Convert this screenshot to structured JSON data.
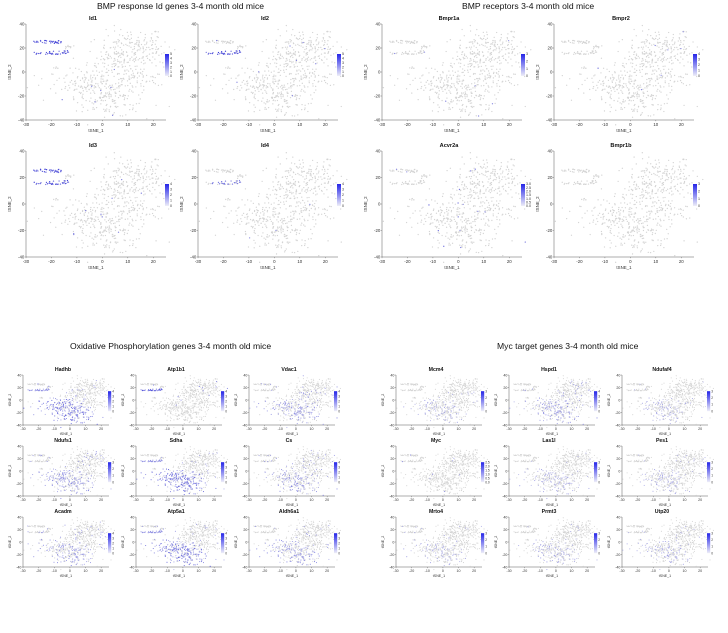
{
  "sections": [
    {
      "title": "BMP response Id genes 3-4 month old mice"
    },
    {
      "title": "BMP receptors 3-4 month old mice"
    },
    {
      "title": "Oxidative Phosphorylation genes 3-4 month old mice"
    },
    {
      "title": "Myc target genes 3-4 month old mice"
    }
  ],
  "axes": {
    "xlabel": "tSNE_1",
    "ylabel": "tSNE_2"
  },
  "colors": {
    "background_cells": "#d4d4d4",
    "expressing_cells": "#3b3bd6",
    "scale_high": "#2525e8",
    "scale_low": "#eeeef8"
  },
  "chart_data": [
    {
      "type": "scatter",
      "section": 0,
      "title": "Id1",
      "xlim": [
        -30,
        25
      ],
      "ylim": [
        -40,
        40
      ],
      "xticks": [
        "-30",
        "-20",
        "-10",
        "0",
        "10",
        "20"
      ],
      "yticks": [
        "40",
        "20",
        "0",
        "-20",
        "-40"
      ],
      "scale_max": 5,
      "colorbar": [
        "5",
        "4",
        "3",
        "2",
        "1",
        "0"
      ],
      "pattern": "islands"
    },
    {
      "type": "scatter",
      "section": 0,
      "title": "Id2",
      "xlim": [
        -30,
        25
      ],
      "ylim": [
        -40,
        40
      ],
      "xticks": [
        "-30",
        "-20",
        "-10",
        "0",
        "10",
        "20"
      ],
      "yticks": [
        "40",
        "20",
        "0",
        "-20",
        "-40"
      ],
      "scale_max": 5,
      "colorbar": [
        "5",
        "4",
        "3",
        "2",
        "1",
        "0"
      ],
      "pattern": "lower_island"
    },
    {
      "type": "scatter",
      "section": 0,
      "title": "Id3",
      "xlim": [
        -30,
        25
      ],
      "ylim": [
        -40,
        40
      ],
      "xticks": [
        "-30",
        "-20",
        "-10",
        "0",
        "10",
        "20"
      ],
      "yticks": [
        "40",
        "20",
        "0",
        "-20",
        "-40"
      ],
      "scale_max": 4,
      "colorbar": [
        "4",
        "3",
        "2",
        "1",
        "0"
      ],
      "pattern": "islands"
    },
    {
      "type": "scatter",
      "section": 0,
      "title": "Id4",
      "xlim": [
        -30,
        25
      ],
      "ylim": [
        -40,
        40
      ],
      "xticks": [
        "-30",
        "-20",
        "-10",
        "0",
        "10",
        "20"
      ],
      "yticks": [
        "40",
        "20",
        "0",
        "-20",
        "-40"
      ],
      "scale_max": 4,
      "colorbar": [
        "4",
        "3",
        "2",
        "1",
        "0"
      ],
      "pattern": "lower_island_sparse"
    },
    {
      "type": "scatter",
      "section": 1,
      "title": "Bmpr1a",
      "xlim": [
        -30,
        25
      ],
      "ylim": [
        -40,
        40
      ],
      "xticks": [
        "-30",
        "-20",
        "-10",
        "0",
        "10",
        "20"
      ],
      "yticks": [
        "40",
        "20",
        "0",
        "-20",
        "-40"
      ],
      "scale_max": 3,
      "colorbar": [
        "3",
        "2",
        "1",
        "0"
      ],
      "pattern": "sparse"
    },
    {
      "type": "scatter",
      "section": 1,
      "title": "Bmpr2",
      "xlim": [
        -30,
        25
      ],
      "ylim": [
        -40,
        40
      ],
      "xticks": [
        "-30",
        "-20",
        "-10",
        "0",
        "10",
        "20"
      ],
      "yticks": [
        "40",
        "20",
        "0",
        "-20",
        "-40"
      ],
      "scale_max": 4,
      "colorbar": [
        "4",
        "3",
        "2",
        "1",
        "0"
      ],
      "pattern": "sparse"
    },
    {
      "type": "scatter",
      "section": 1,
      "title": "Acvr2a",
      "xlim": [
        -30,
        25
      ],
      "ylim": [
        -40,
        40
      ],
      "xticks": [
        "-30",
        "-20",
        "-10",
        "0",
        "10",
        "20"
      ],
      "yticks": [
        "40",
        "20",
        "0",
        "-20",
        "-40"
      ],
      "scale_max": 3,
      "colorbar": [
        "3.0",
        "2.5",
        "2.0",
        "1.5",
        "1.0",
        "0.5",
        "0.0"
      ],
      "pattern": "sparse"
    },
    {
      "type": "scatter",
      "section": 1,
      "title": "Bmpr1b",
      "xlim": [
        -30,
        25
      ],
      "ylim": [
        -40,
        40
      ],
      "xticks": [
        "-30",
        "-20",
        "-10",
        "0",
        "10",
        "20"
      ],
      "yticks": [
        "40",
        "20",
        "0",
        "-20",
        "-40"
      ],
      "scale_max": 3,
      "colorbar": [
        "3",
        "2",
        "1",
        "0"
      ],
      "pattern": "none"
    },
    {
      "type": "scatter",
      "section": 2,
      "title": "Hadhb",
      "xlim": [
        -30,
        25
      ],
      "ylim": [
        -40,
        40
      ],
      "xticks": [
        "-30",
        "-20",
        "-10",
        "0",
        "10",
        "20"
      ],
      "yticks": [
        "40",
        "20",
        "0",
        "-20",
        "-40"
      ],
      "scale_max": 4,
      "colorbar": [
        "4",
        "3",
        "2",
        "1",
        "0"
      ],
      "pattern": "lower_dense"
    },
    {
      "type": "scatter",
      "section": 2,
      "title": "Atp1b1",
      "xlim": [
        -30,
        25
      ],
      "ylim": [
        -40,
        40
      ],
      "xticks": [
        "-30",
        "-20",
        "-10",
        "0",
        "10",
        "20"
      ],
      "yticks": [
        "40",
        "20",
        "0",
        "-20",
        "-40"
      ],
      "scale_max": 4,
      "colorbar": [
        "4",
        "3",
        "2",
        "1",
        "0"
      ],
      "pattern": "lower_island"
    },
    {
      "type": "scatter",
      "section": 2,
      "title": "Vdac1",
      "xlim": [
        -30,
        25
      ],
      "ylim": [
        -40,
        40
      ],
      "xticks": [
        "-30",
        "-20",
        "-10",
        "0",
        "10",
        "20"
      ],
      "yticks": [
        "40",
        "20",
        "0",
        "-20",
        "-40"
      ],
      "scale_max": 4,
      "colorbar": [
        "4",
        "3",
        "2",
        "1",
        "0"
      ],
      "pattern": "lower_medium"
    },
    {
      "type": "scatter",
      "section": 2,
      "title": "Ndufs1",
      "xlim": [
        -30,
        25
      ],
      "ylim": [
        -40,
        40
      ],
      "xticks": [
        "-30",
        "-20",
        "-10",
        "0",
        "10",
        "20"
      ],
      "yticks": [
        "40",
        "20",
        "0",
        "-20",
        "-40"
      ],
      "scale_max": 3,
      "colorbar": [
        "3",
        "2",
        "1",
        "0"
      ],
      "pattern": "lower_medium"
    },
    {
      "type": "scatter",
      "section": 2,
      "title": "Sdha",
      "xlim": [
        -30,
        25
      ],
      "ylim": [
        -40,
        40
      ],
      "xticks": [
        "-30",
        "-20",
        "-10",
        "0",
        "10",
        "20"
      ],
      "yticks": [
        "40",
        "20",
        "0",
        "-20",
        "-40"
      ],
      "scale_max": 4,
      "colorbar": [
        "4",
        "3",
        "2",
        "1",
        "0"
      ],
      "pattern": "lower_dense"
    },
    {
      "type": "scatter",
      "section": 2,
      "title": "Cs",
      "xlim": [
        -30,
        25
      ],
      "ylim": [
        -40,
        40
      ],
      "xticks": [
        "-30",
        "-20",
        "-10",
        "0",
        "10",
        "20"
      ],
      "yticks": [
        "40",
        "20",
        "0",
        "-20",
        "-40"
      ],
      "scale_max": 4,
      "colorbar": [
        "4",
        "3",
        "2",
        "1",
        "0"
      ],
      "pattern": "lower_medium"
    },
    {
      "type": "scatter",
      "section": 2,
      "title": "Acadm",
      "xlim": [
        -30,
        25
      ],
      "ylim": [
        -40,
        40
      ],
      "xticks": [
        "-30",
        "-20",
        "-10",
        "0",
        "10",
        "20"
      ],
      "yticks": [
        "40",
        "20",
        "0",
        "-20",
        "-40"
      ],
      "scale_max": 4,
      "colorbar": [
        "4",
        "3",
        "2",
        "1",
        "0"
      ],
      "pattern": "lower_medium"
    },
    {
      "type": "scatter",
      "section": 2,
      "title": "Atp5a1",
      "xlim": [
        -30,
        25
      ],
      "ylim": [
        -40,
        40
      ],
      "xticks": [
        "-30",
        "-20",
        "-10",
        "0",
        "10",
        "20"
      ],
      "yticks": [
        "40",
        "20",
        "0",
        "-20",
        "-40"
      ],
      "scale_max": 4,
      "colorbar": [
        "4",
        "3",
        "2",
        "1",
        "0"
      ],
      "pattern": "lower_dense"
    },
    {
      "type": "scatter",
      "section": 2,
      "title": "Aldh6a1",
      "xlim": [
        -30,
        25
      ],
      "ylim": [
        -40,
        40
      ],
      "xticks": [
        "-30",
        "-20",
        "-10",
        "0",
        "10",
        "20"
      ],
      "yticks": [
        "40",
        "20",
        "0",
        "-20",
        "-40"
      ],
      "scale_max": 4,
      "colorbar": [
        "4",
        "3",
        "2",
        "1",
        "0"
      ],
      "pattern": "lower_medium"
    },
    {
      "type": "scatter",
      "section": 3,
      "title": "Mcm4",
      "xlim": [
        -30,
        25
      ],
      "ylim": [
        -40,
        40
      ],
      "xticks": [
        "-30",
        "-20",
        "-10",
        "0",
        "10",
        "20"
      ],
      "yticks": [
        "40",
        "20",
        "0",
        "-20",
        "-40"
      ],
      "scale_max": 3,
      "colorbar": [
        "3",
        "2",
        "1",
        "0"
      ],
      "pattern": "lower_light"
    },
    {
      "type": "scatter",
      "section": 3,
      "title": "Hspd1",
      "xlim": [
        -30,
        25
      ],
      "ylim": [
        -40,
        40
      ],
      "xticks": [
        "-30",
        "-20",
        "-10",
        "0",
        "10",
        "20"
      ],
      "yticks": [
        "40",
        "20",
        "0",
        "-20",
        "-40"
      ],
      "scale_max": 4,
      "colorbar": [
        "4",
        "3",
        "2",
        "1",
        "0"
      ],
      "pattern": "lower_medium"
    },
    {
      "type": "scatter",
      "section": 3,
      "title": "Ndufaf4",
      "xlim": [
        -30,
        25
      ],
      "ylim": [
        -40,
        40
      ],
      "xticks": [
        "-30",
        "-20",
        "-10",
        "0",
        "10",
        "20"
      ],
      "yticks": [
        "40",
        "20",
        "0",
        "-20",
        "-40"
      ],
      "scale_max": 3,
      "colorbar": [
        "3",
        "2",
        "1",
        "0"
      ],
      "pattern": "lower_light"
    },
    {
      "type": "scatter",
      "section": 3,
      "title": "Myc",
      "xlim": [
        -30,
        25
      ],
      "ylim": [
        -40,
        40
      ],
      "xticks": [
        "-30",
        "-20",
        "-10",
        "0",
        "10",
        "20"
      ],
      "yticks": [
        "40",
        "20",
        "0",
        "-20",
        "-40"
      ],
      "scale_max": 2.5,
      "colorbar": [
        "2.5",
        "2.0",
        "1.5",
        "1.0",
        "0.5",
        "0.0"
      ],
      "pattern": "sparse"
    },
    {
      "type": "scatter",
      "section": 3,
      "title": "Las1l",
      "xlim": [
        -30,
        25
      ],
      "ylim": [
        -40,
        40
      ],
      "xticks": [
        "-30",
        "-20",
        "-10",
        "0",
        "10",
        "20"
      ],
      "yticks": [
        "40",
        "20",
        "0",
        "-20",
        "-40"
      ],
      "scale_max": 3,
      "colorbar": [
        "3",
        "2",
        "1",
        "0"
      ],
      "pattern": "lower_light"
    },
    {
      "type": "scatter",
      "section": 3,
      "title": "Pes1",
      "xlim": [
        -30,
        25
      ],
      "ylim": [
        -40,
        40
      ],
      "xticks": [
        "-30",
        "-20",
        "-10",
        "0",
        "10",
        "20"
      ],
      "yticks": [
        "40",
        "20",
        "0",
        "-20",
        "-40"
      ],
      "scale_max": 3,
      "colorbar": [
        "3",
        "2",
        "1",
        "0"
      ],
      "pattern": "lower_light"
    },
    {
      "type": "scatter",
      "section": 3,
      "title": "Mrto4",
      "xlim": [
        -30,
        25
      ],
      "ylim": [
        -40,
        40
      ],
      "xticks": [
        "-30",
        "-20",
        "-10",
        "0",
        "10",
        "20"
      ],
      "yticks": [
        "40",
        "20",
        "0",
        "-20",
        "-40"
      ],
      "scale_max": 3,
      "colorbar": [
        "3",
        "2",
        "1",
        "0"
      ],
      "pattern": "lower_light"
    },
    {
      "type": "scatter",
      "section": 3,
      "title": "Prmt3",
      "xlim": [
        -30,
        25
      ],
      "ylim": [
        -40,
        40
      ],
      "xticks": [
        "-30",
        "-20",
        "-10",
        "0",
        "10",
        "20"
      ],
      "yticks": [
        "40",
        "20",
        "0",
        "-20",
        "-40"
      ],
      "scale_max": 3,
      "colorbar": [
        "3",
        "2",
        "1",
        "0"
      ],
      "pattern": "lower_light"
    },
    {
      "type": "scatter",
      "section": 3,
      "title": "Utp20",
      "xlim": [
        -30,
        25
      ],
      "ylim": [
        -40,
        40
      ],
      "xticks": [
        "-30",
        "-20",
        "-10",
        "0",
        "10",
        "20"
      ],
      "yticks": [
        "40",
        "20",
        "0",
        "-20",
        "-40"
      ],
      "scale_max": 3,
      "colorbar": [
        "3",
        "2",
        "1",
        "0"
      ],
      "pattern": "lower_light"
    }
  ]
}
